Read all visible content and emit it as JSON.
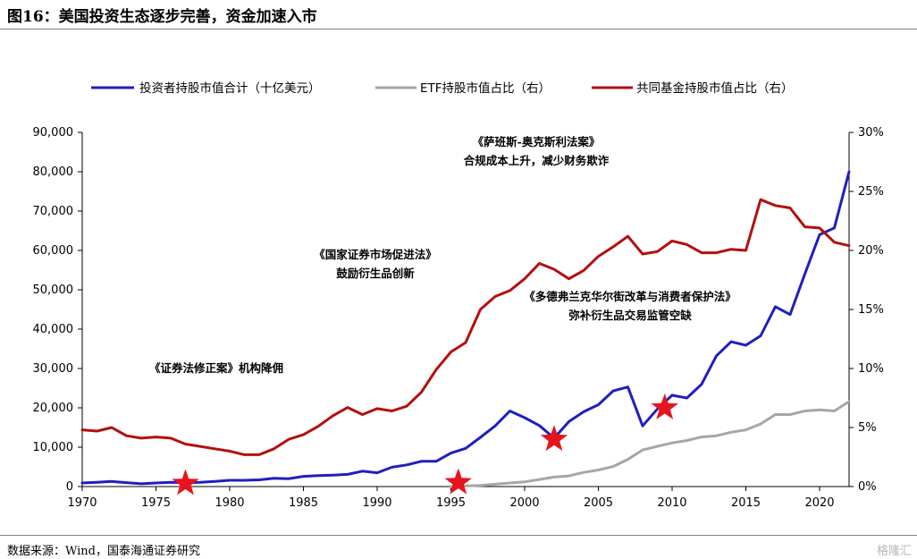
{
  "figure": {
    "title": "图16：美国投资生态逐步完善，资金加速入市",
    "source": "数据来源：Wind，国泰海通证券研究",
    "watermark": "格隆汇"
  },
  "chart_data": {
    "type": "line",
    "x_range": [
      1970,
      2022
    ],
    "x_ticks": [
      1970,
      1975,
      1980,
      1985,
      1990,
      1995,
      2000,
      2005,
      2010,
      2015,
      2020
    ],
    "y_left": {
      "range": [
        0,
        90000
      ],
      "ticks": [
        "0",
        "10,000",
        "20,000",
        "30,000",
        "40,000",
        "50,000",
        "60,000",
        "70,000",
        "80,000",
        "90,000"
      ]
    },
    "y_right": {
      "range": [
        0,
        30
      ],
      "ticks": [
        "0%",
        "5%",
        "10%",
        "15%",
        "20%",
        "25%",
        "30%"
      ]
    },
    "series": [
      {
        "name": "投资者持股市值合计（十亿美元）",
        "axis": "left",
        "color": "#1f1fbf",
        "x": [
          1970,
          1971,
          1972,
          1973,
          1974,
          1975,
          1976,
          1977,
          1978,
          1979,
          1980,
          1981,
          1982,
          1983,
          1984,
          1985,
          1986,
          1987,
          1988,
          1989,
          1990,
          1991,
          1992,
          1993,
          1994,
          1995,
          1996,
          1997,
          1998,
          1999,
          2000,
          2001,
          2002,
          2003,
          2004,
          2005,
          2006,
          2007,
          2008,
          2009,
          2010,
          2011,
          2012,
          2013,
          2014,
          2015,
          2016,
          2017,
          2018,
          2019,
          2020,
          2021,
          2022
        ],
        "values": [
          900,
          1100,
          1300,
          1000,
          700,
          900,
          1100,
          1000,
          1100,
          1300,
          1600,
          1600,
          1700,
          2100,
          2000,
          2600,
          2800,
          2900,
          3100,
          3900,
          3500,
          4900,
          5500,
          6400,
          6400,
          8500,
          9700,
          12500,
          15400,
          19200,
          17500,
          15500,
          12300,
          16500,
          19000,
          20800,
          24300,
          25300,
          15400,
          19700,
          23200,
          22500,
          26000,
          33200,
          36800,
          35900,
          38300,
          45700,
          43700,
          54000,
          64000,
          65700,
          80000
        ]
      },
      {
        "name": "ETF持股市值占比（右）",
        "axis": "right",
        "color": "#a6a6a6",
        "x": [
          1995,
          1996,
          1997,
          1998,
          1999,
          2000,
          2001,
          2002,
          2003,
          2004,
          2005,
          2006,
          2007,
          2008,
          2009,
          2010,
          2011,
          2012,
          2013,
          2014,
          2015,
          2016,
          2017,
          2018,
          2019,
          2020,
          2021,
          2022
        ],
        "values": [
          0.0,
          0.05,
          0.1,
          0.2,
          0.3,
          0.4,
          0.6,
          0.8,
          0.9,
          1.2,
          1.4,
          1.7,
          2.3,
          3.1,
          3.4,
          3.7,
          3.9,
          4.2,
          4.3,
          4.6,
          4.8,
          5.3,
          6.1,
          6.1,
          6.4,
          6.5,
          6.4,
          7.2
        ]
      },
      {
        "name": "共同基金持股市值占比（右）",
        "axis": "right",
        "color": "#b30f0f",
        "x": [
          1970,
          1971,
          1972,
          1973,
          1974,
          1975,
          1976,
          1977,
          1978,
          1979,
          1980,
          1981,
          1982,
          1983,
          1984,
          1985,
          1986,
          1987,
          1988,
          1989,
          1990,
          1991,
          1992,
          1993,
          1994,
          1995,
          1996,
          1997,
          1998,
          1999,
          2000,
          2001,
          2002,
          2003,
          2004,
          2005,
          2006,
          2007,
          2008,
          2009,
          2010,
          2011,
          2012,
          2013,
          2014,
          2015,
          2016,
          2017,
          2018,
          2019,
          2020,
          2021,
          2022
        ],
        "values": [
          4.8,
          4.7,
          5.0,
          4.3,
          4.1,
          4.2,
          4.1,
          3.6,
          3.4,
          3.2,
          3.0,
          2.7,
          2.7,
          3.2,
          4.0,
          4.4,
          5.1,
          6.0,
          6.7,
          6.1,
          6.6,
          6.4,
          6.8,
          8.0,
          9.9,
          11.4,
          12.2,
          15.0,
          16.1,
          16.6,
          17.6,
          18.9,
          18.4,
          17.6,
          18.3,
          19.5,
          20.3,
          21.2,
          19.7,
          19.9,
          20.8,
          20.5,
          19.8,
          19.8,
          20.1,
          20.0,
          24.3,
          23.8,
          23.6,
          22.0,
          21.9,
          20.7,
          20.4
        ]
      }
    ],
    "annotations": [
      {
        "lines": [
          "《萨班斯-奥克斯利法案》",
          "合规成本上升，减少财务欺诈"
        ]
      },
      {
        "lines": [
          "《国家证券市场促进法》",
          "鼓励衍生品创新"
        ]
      },
      {
        "lines": [
          "《多德弗兰克华尔街改革与消费者保护法》",
          "弥补衍生品交易监管空缺"
        ]
      },
      {
        "lines": [
          "《证券法修正案》机构降佣"
        ]
      }
    ],
    "markers": [
      {
        "x": 1977,
        "value": 800,
        "axis": "left",
        "symbol": "star",
        "color": "#e8141b"
      },
      {
        "x": 1995.5,
        "value": 1000,
        "axis": "left",
        "symbol": "star",
        "color": "#e8141b"
      },
      {
        "x": 2002,
        "value": 12000,
        "axis": "left",
        "symbol": "star",
        "color": "#e8141b"
      },
      {
        "x": 2009.5,
        "value": 20000,
        "axis": "left",
        "symbol": "star",
        "color": "#e8141b"
      }
    ],
    "legend_position": "top",
    "grid": false
  }
}
